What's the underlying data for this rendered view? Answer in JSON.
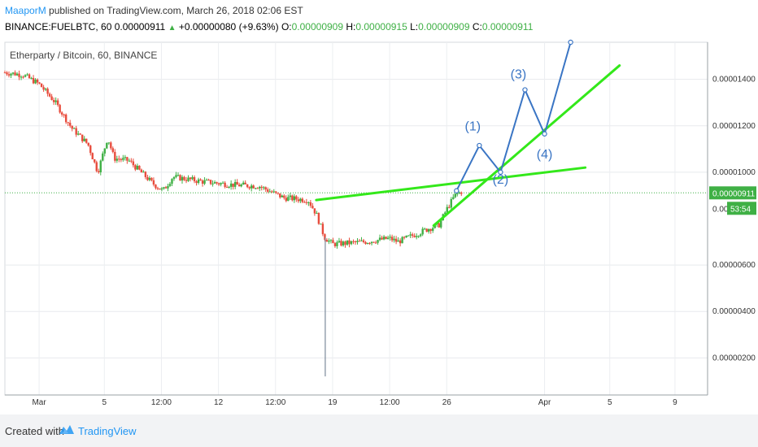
{
  "header": {
    "author": "MaaporM",
    "published_text": " published on TradingView.com, March 26, 2018 02:06 EST",
    "symbol": "BINANCE:FUELBTC, 60",
    "last": "0.00000911",
    "change_arrow": "▲",
    "change": "+0.00000080 (+9.63%)",
    "o_label": "O:",
    "o_value": "0.00000909",
    "h_label": "H:",
    "h_value": "0.00000915",
    "l_label": "L:",
    "l_value": "0.00000909",
    "c_label": "C:",
    "c_value": "0.00000911"
  },
  "footer": {
    "created_with": "Created with",
    "brand": "TradingView"
  },
  "colors": {
    "up": "#3fb045",
    "down": "#e84c3d",
    "trend": "#33e81a",
    "projection": "#3a75c4",
    "last_price_bg": "#3fb045",
    "spike": "#7b8a9a"
  },
  "chart_data": {
    "type": "candlestick",
    "title": "Etherparty / Bitcoin, 60, BINANCE",
    "y_ticks": [
      "0.00001400",
      "0.00001200",
      "0.00001000",
      "0.00000600",
      "0.00000400",
      "0.00000200"
    ],
    "y_tick_values": [
      1400,
      1200,
      1000,
      600,
      400,
      200
    ],
    "ylim": [
      40,
      1560
    ],
    "y_unit_multiplier": "1e-8",
    "x_ticks": [
      "Mar",
      "5",
      "12:00",
      "12",
      "12:00",
      "19",
      "12:00",
      "26",
      "Apr",
      "5",
      "9"
    ],
    "x_tick_days": [
      1,
      5,
      8.5,
      12,
      15.5,
      19,
      22.5,
      26,
      32,
      36,
      40
    ],
    "xlim": [
      -1.1,
      42
    ],
    "last_price_label": "0.00000911",
    "countdown": "53:54",
    "partial_price_label": "0.00",
    "last_price_value": 911,
    "price_path": [
      [
        -1.1,
        1430
      ],
      [
        0,
        1420
      ],
      [
        1,
        1380
      ],
      [
        2,
        1300
      ],
      [
        3,
        1190
      ],
      [
        4,
        1120
      ],
      [
        4.6,
        1000
      ],
      [
        5.2,
        1150
      ],
      [
        5.6,
        1060
      ],
      [
        6.5,
        1050
      ],
      [
        8,
        950
      ],
      [
        8.6,
        920
      ],
      [
        9.2,
        980
      ],
      [
        11,
        960
      ],
      [
        13,
        945
      ],
      [
        14.5,
        940
      ],
      [
        16,
        890
      ],
      [
        17.5,
        880
      ],
      [
        18,
        820
      ],
      [
        18.5,
        720
      ],
      [
        19,
        690
      ],
      [
        20,
        695
      ],
      [
        21,
        700
      ],
      [
        22.5,
        715
      ],
      [
        23,
        700
      ],
      [
        24,
        730
      ],
      [
        25,
        760
      ],
      [
        25.5,
        770
      ],
      [
        26,
        840
      ],
      [
        26.5,
        900
      ],
      [
        27,
        920
      ]
    ],
    "wick_spike": {
      "day": 18.55,
      "low": 120,
      "high": 720
    },
    "trendlines": [
      {
        "from": [
          18,
          880
        ],
        "to": [
          34.5,
          1020
        ]
      },
      {
        "from": [
          25.2,
          770
        ],
        "to": [
          36.6,
          1460
        ]
      }
    ],
    "projection": {
      "points": [
        [
          26.6,
          920
        ],
        [
          28.0,
          1115
        ],
        [
          29.3,
          1000
        ],
        [
          30.8,
          1355
        ],
        [
          32.0,
          1165
        ],
        [
          33.6,
          1560
        ]
      ],
      "labels": [
        "(1)",
        "(2)",
        "(3)",
        "(4)"
      ]
    }
  }
}
